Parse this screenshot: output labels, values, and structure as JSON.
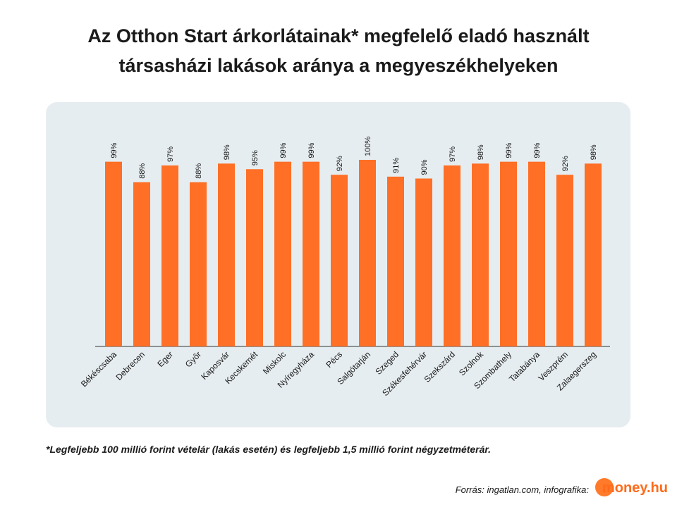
{
  "title": {
    "line1": "Az Otthon Start árkorlátainak* megfelelő eladó használt",
    "line2": "társasházi lakások aránya a megyeszékhelyeken"
  },
  "footnote": "*Legfeljebb 100 millió forint vételár (lakás esetén) és legfeljebb 1,5 millió forint négyzetméterár.",
  "source": "Forrás: ingatlan.com, infografika:",
  "logo_text": "money.hu",
  "colors": {
    "bar": "#ff6f26",
    "panel": "#e6edf0",
    "axis": "#333333",
    "text": "#1a1a1a"
  },
  "chart_data": {
    "type": "bar",
    "categories": [
      "Békéscsaba",
      "Debrecen",
      "Eger",
      "Győr",
      "Kaposvár",
      "Kecskemét",
      "Miskolc",
      "Nyíregyháza",
      "Pécs",
      "Salgótarján",
      "Szeged",
      "Székesfehérvár",
      "Szekszárd",
      "Szolnok",
      "Szombathely",
      "Tatabánya",
      "Veszprém",
      "Zalaegerszeg"
    ],
    "values": [
      99,
      88,
      97,
      88,
      98,
      95,
      99,
      99,
      92,
      100,
      91,
      90,
      97,
      98,
      99,
      99,
      92,
      98
    ],
    "value_labels": [
      "99%",
      "88%",
      "97%",
      "88%",
      "98%",
      "95%",
      "99%",
      "99%",
      "92%",
      "100%",
      "91%",
      "90%",
      "97%",
      "98%",
      "99%",
      "99%",
      "92%",
      "98%"
    ],
    "unit": "%",
    "ylim": [
      0,
      100
    ],
    "grid": false,
    "legend": "none",
    "title": "Az Otthon Start árkorlátainak* megfelelő eladó használt társasházi lakások aránya a megyeszékhelyeken"
  }
}
